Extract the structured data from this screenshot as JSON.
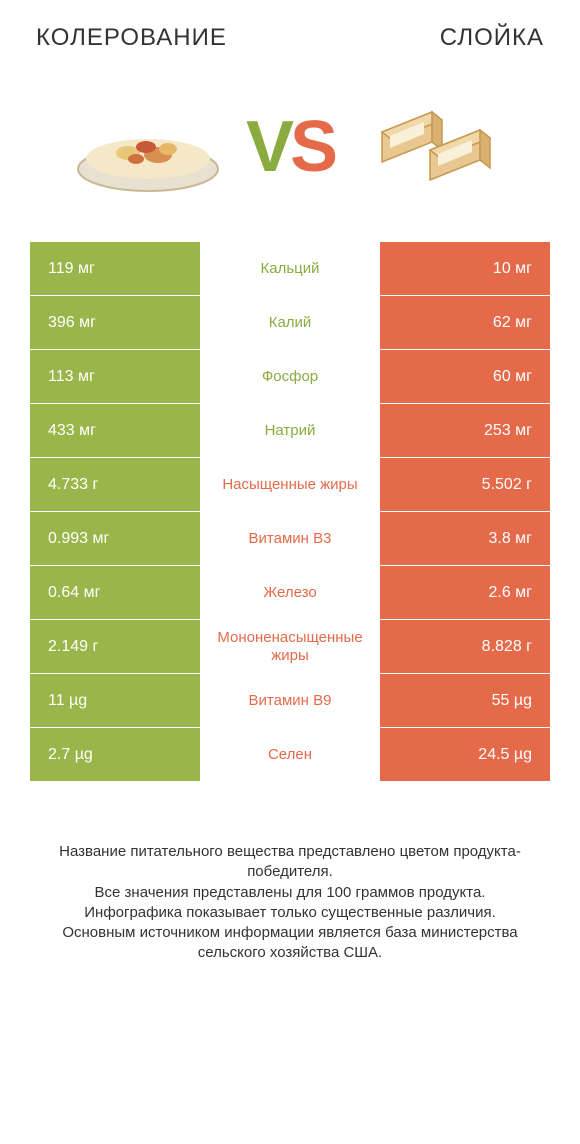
{
  "header": {
    "left_title": "КОЛЕРОВАНИЕ",
    "right_title": "СЛОЙКА"
  },
  "vs": {
    "v": "V",
    "s": "S"
  },
  "colors": {
    "green": "#9ab64a",
    "orange": "#e46a4a",
    "green_text": "#8aab3f",
    "orange_text": "#e46a4a",
    "row_bg_even": "#f5f5f5",
    "white": "#ffffff"
  },
  "rows": [
    {
      "left": "119 мг",
      "mid": "Кальций",
      "right": "10 мг",
      "winner": "left"
    },
    {
      "left": "396 мг",
      "mid": "Калий",
      "right": "62 мг",
      "winner": "left"
    },
    {
      "left": "113 мг",
      "mid": "Фосфор",
      "right": "60 мг",
      "winner": "left"
    },
    {
      "left": "433 мг",
      "mid": "Натрий",
      "right": "253 мг",
      "winner": "left"
    },
    {
      "left": "4.733 г",
      "mid": "Насыщенные жиры",
      "right": "5.502 г",
      "winner": "right"
    },
    {
      "left": "0.993 мг",
      "mid": "Витамин B3",
      "right": "3.8 мг",
      "winner": "right"
    },
    {
      "left": "0.64 мг",
      "mid": "Железо",
      "right": "2.6 мг",
      "winner": "right"
    },
    {
      "left": "2.149 г",
      "mid": "Мононенасыщенные жиры",
      "right": "8.828 г",
      "winner": "right"
    },
    {
      "left": "11 µg",
      "mid": "Витамин B9",
      "right": "55 µg",
      "winner": "right"
    },
    {
      "left": "2.7 µg",
      "mid": "Селен",
      "right": "24.5 µg",
      "winner": "right"
    }
  ],
  "footer": {
    "line1": "Название питательного вещества представлено цветом продукта-победителя.",
    "line2": "Все значения представлены для 100 граммов продукта.",
    "line3": "Инфографика показывает только существенные различия.",
    "line4": "Основным источником информации является база министерства сельского хозяйства США."
  }
}
